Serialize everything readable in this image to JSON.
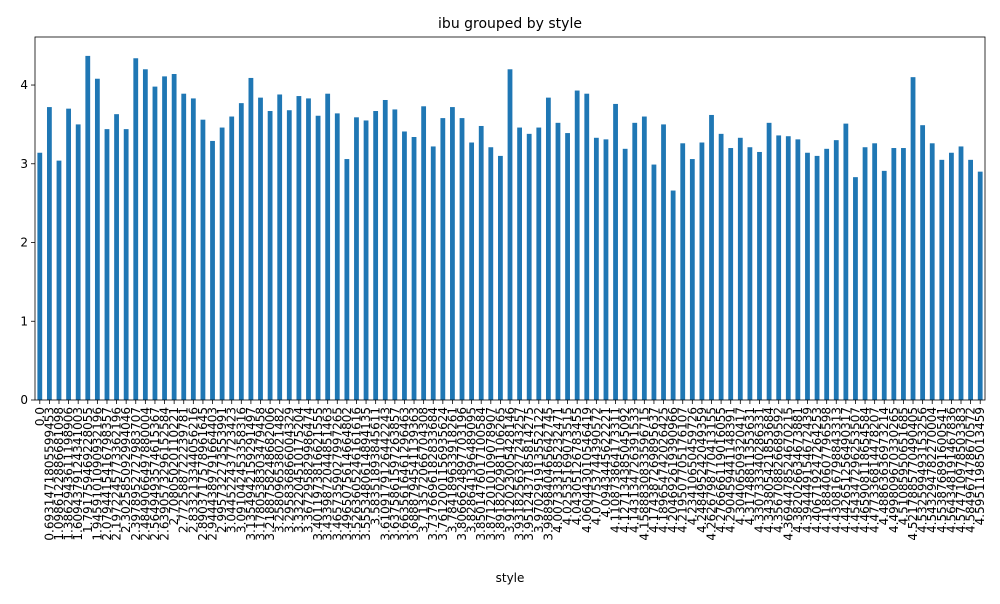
{
  "chart_data": {
    "type": "bar",
    "title": "ibu grouped by style",
    "x_label": "style",
    "color": "#1f77b4",
    "categories": [
      "0.0",
      "0.6931471805599453",
      "1.0986122886681098",
      "1.3862943611198906",
      "1.6094379124341003",
      "1.791759469228055",
      "1.9459101090932196",
      "2.0794415416798357",
      "2.1972245773362196",
      "2.302585092994046",
      "2.3978952727983707",
      "2.4849066497880004",
      "2.5649493574615367",
      "2.6390573296152584",
      "2.70805020110221",
      "2.772588722239781",
      "2.833213344056216",
      "2.8903717578961645",
      "2.9444389791664403",
      "2.995732273553991",
      "3.044522437723423",
      "3.091042453358316",
      "3.1354942159291497",
      "3.1780538303479458",
      "3.2188758248682006",
      "3.258096538021482",
      "3.295836866004329",
      "3.332204510175204",
      "3.367295829986474",
      "3.4011973816621555",
      "3.4339872044851463",
      "3.4657359027997265",
      "3.4965075614664802",
      "3.5263605246161616",
      "3.5553480614894135",
      "3.58351893845611",
      "3.6109179126442243",
      "3.6375861597263857",
      "3.6635616461296463",
      "3.6888794541139363",
      "3.713572066704308",
      "3.7376696182833684",
      "3.7612001156935624",
      "3.784189633918261",
      "3.8066624897703196",
      "3.828641396489095",
      "3.8501476017100584",
      "3.8712010109078907",
      "3.8918202981106265",
      "3.912023005428146",
      "3.9318256327243257",
      "3.9512437185814275",
      "3.970291913552122",
      "3.9889840465642745",
      "4.007333185232471",
      "4.02535169073515",
      "4.04305126783455",
      "4.060443010546419",
      "4.07753744390572",
      "4.0943445622221",
      "4.110873864173311",
      "4.127134385045092",
      "4.143134726391533",
      "4.1588830833596715",
      "4.174387269895637",
      "4.189654742026425",
      "4.204692619390966",
      "4.219507705176107",
      "4.23410650459726",
      "4.248495242049359",
      "4.2626798770413155",
      "4.276666119016055",
      "4.290459441148391",
      "4.30406509320417",
      "4.31748811353631",
      "4.330733340286331",
      "4.343805421853684",
      "4.356708826689592",
      "4.3694478524670215",
      "4.382026634673881",
      "4.394449154672439",
      "4.406719247264253",
      "4.418840607796598",
      "4.430816798843313",
      "4.442651256490317",
      "4.454347296253507",
      "4.465908118654584",
      "4.477336814478207",
      "4.48863636973214",
      "4.499809670330265",
      "4.51085950651685",
      "4.5217885770490405",
      "4.532599493153256",
      "4.543294782270004",
      "4.553876891600541",
      "4.564348191467836",
      "4.574710978503383",
      "4.584967478670572",
      "4.59511985013459"
    ],
    "values": [
      3.14,
      3.72,
      3.04,
      3.7,
      3.5,
      4.37,
      4.08,
      3.44,
      3.63,
      3.44,
      4.34,
      4.2,
      3.98,
      4.11,
      4.14,
      3.89,
      3.83,
      3.56,
      3.29,
      3.46,
      3.6,
      3.77,
      4.09,
      3.84,
      3.67,
      3.88,
      3.68,
      3.86,
      3.83,
      3.61,
      3.89,
      3.64,
      3.06,
      3.59,
      3.55,
      3.67,
      3.81,
      3.69,
      3.41,
      3.34,
      3.73,
      3.22,
      3.58,
      3.72,
      3.58,
      3.27,
      3.48,
      3.21,
      3.1,
      4.2,
      3.46,
      3.38,
      3.46,
      3.84,
      3.52,
      3.39,
      3.93,
      3.89,
      3.33,
      3.31,
      3.76,
      3.19,
      3.52,
      3.6,
      2.99,
      3.5,
      2.66,
      3.26,
      3.06,
      3.27,
      3.62,
      3.38,
      3.2,
      3.33,
      3.21,
      3.15,
      3.52,
      3.36,
      3.35,
      3.31,
      3.14,
      3.1,
      3.19,
      3.3,
      3.51,
      2.83,
      3.21,
      3.26,
      2.91,
      3.2,
      3.2,
      4.1,
      3.49,
      3.26,
      3.05,
      3.14,
      3.22,
      3.05,
      2.9
    ],
    "ylim": [
      0,
      4.61
    ],
    "yticks": [
      0,
      1,
      2,
      3,
      4
    ]
  }
}
